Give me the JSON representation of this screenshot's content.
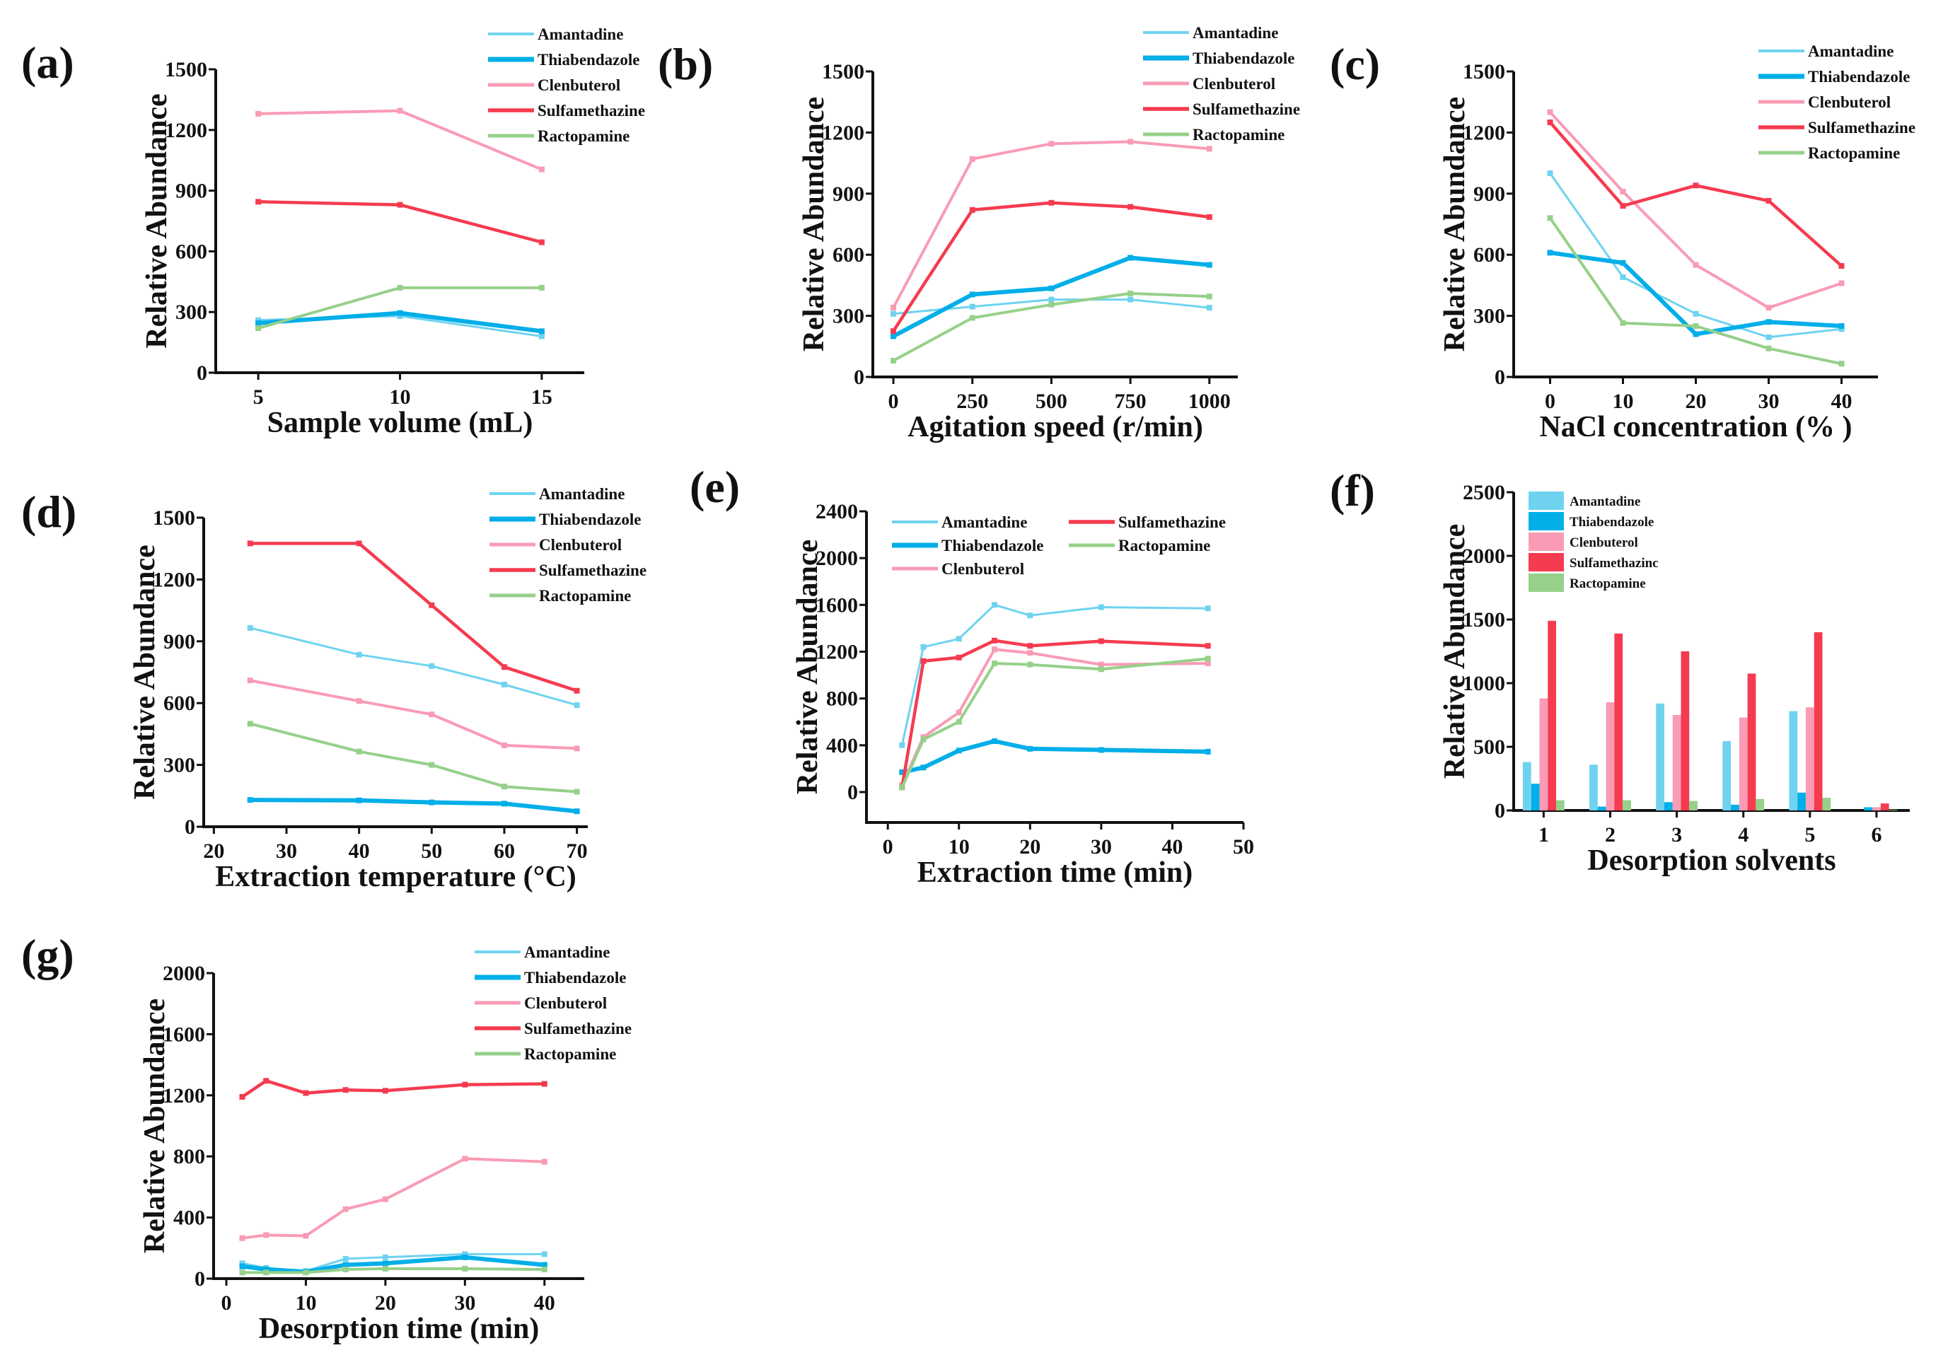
{
  "colors": {
    "Amantadine": "#6fd3f0",
    "Thiabendazole": "#00aee8",
    "Clenbuterol": "#f99bb5",
    "Sulfamethazine": "#f53b4f",
    "Ractopamine": "#96d08a"
  },
  "chart_data": [
    {
      "panel": "(a)",
      "type": "line",
      "xlabel": "Sample volume (mL)",
      "ylabel": "Relative Abundance",
      "xlim": [
        3.5,
        16.5
      ],
      "ylim": [
        0,
        1500
      ],
      "xticks": [
        5,
        10,
        15
      ],
      "yticks": [
        0,
        300,
        600,
        900,
        1200,
        1500
      ],
      "legend": "top-right",
      "x": [
        5,
        10,
        15
      ],
      "series": [
        {
          "name": "Amantadine",
          "values": [
            260,
            280,
            180
          ]
        },
        {
          "name": "Thiabendazole",
          "values": [
            245,
            295,
            205
          ]
        },
        {
          "name": "Clenbuterol",
          "values": [
            1280,
            1295,
            1005
          ]
        },
        {
          "name": "Sulfamethazine",
          "values": [
            845,
            830,
            645
          ]
        },
        {
          "name": "Ractopamine",
          "values": [
            220,
            420,
            420
          ]
        }
      ]
    },
    {
      "panel": "(b)",
      "type": "line",
      "xlabel": "Agitation speed (r/min)",
      "ylabel": "Relative Abundance",
      "xlim": [
        -65,
        1090
      ],
      "ylim": [
        0,
        1500
      ],
      "xticks": [
        0,
        250,
        500,
        750,
        1000
      ],
      "yticks": [
        0,
        300,
        600,
        900,
        1200,
        1500
      ],
      "legend": "top-right",
      "x": [
        0,
        250,
        500,
        750,
        1000
      ],
      "series": [
        {
          "name": "Amantadine",
          "values": [
            310,
            345,
            380,
            380,
            340
          ]
        },
        {
          "name": "Thiabendazole",
          "values": [
            200,
            405,
            435,
            585,
            550
          ]
        },
        {
          "name": "Clenbuterol",
          "values": [
            340,
            1070,
            1145,
            1155,
            1120
          ]
        },
        {
          "name": "Sulfamethazine",
          "values": [
            225,
            820,
            855,
            835,
            785
          ]
        },
        {
          "name": "Ractopamine",
          "values": [
            80,
            290,
            355,
            410,
            395
          ]
        }
      ]
    },
    {
      "panel": "(c)",
      "type": "line",
      "xlabel": "NaCl concentration (% )",
      "ylabel": "Relative Abundance",
      "xlim": [
        -5,
        45
      ],
      "ylim": [
        0,
        1500
      ],
      "xticks": [
        0,
        10,
        20,
        30,
        40
      ],
      "yticks": [
        0,
        300,
        600,
        900,
        1200,
        1500
      ],
      "legend": "top-right",
      "x": [
        0,
        10,
        20,
        30,
        40
      ],
      "series": [
        {
          "name": "Amantadine",
          "values": [
            1000,
            490,
            310,
            195,
            235
          ]
        },
        {
          "name": "Thiabendazole",
          "values": [
            610,
            560,
            210,
            270,
            250
          ]
        },
        {
          "name": "Clenbuterol",
          "values": [
            1300,
            910,
            550,
            340,
            460
          ]
        },
        {
          "name": "Sulfamethazine",
          "values": [
            1250,
            840,
            940,
            865,
            545
          ]
        },
        {
          "name": "Ractopamine",
          "values": [
            780,
            265,
            250,
            140,
            65
          ]
        }
      ]
    },
    {
      "panel": "(d)",
      "type": "line",
      "xlabel": "Extraction temperature (°C)",
      "ylabel": "Relative Abundance",
      "xlim": [
        18.6,
        71.5
      ],
      "ylim": [
        0,
        1500
      ],
      "xticks": [
        20,
        30,
        40,
        50,
        60,
        70
      ],
      "yticks": [
        0,
        300,
        600,
        900,
        1200,
        1500
      ],
      "legend": "top-right",
      "x": [
        25,
        40,
        50,
        60,
        70
      ],
      "series": [
        {
          "name": "Amantadine",
          "values": [
            965,
            835,
            780,
            690,
            590
          ]
        },
        {
          "name": "Thiabendazole",
          "values": [
            130,
            128,
            118,
            112,
            75
          ]
        },
        {
          "name": "Clenbuterol",
          "values": [
            710,
            610,
            545,
            395,
            380
          ]
        },
        {
          "name": "Sulfamethazine",
          "values": [
            1375,
            1375,
            1075,
            775,
            660
          ]
        },
        {
          "name": "Ractopamine",
          "values": [
            500,
            365,
            300,
            195,
            170
          ]
        }
      ]
    },
    {
      "panel": "(e)",
      "type": "line",
      "xlabel": "Extraction time (min)",
      "ylabel": "Relative Abundance",
      "xlim": [
        -3,
        50
      ],
      "ylim": [
        -260,
        2400
      ],
      "xticks": [
        0,
        10,
        20,
        30,
        40,
        50
      ],
      "yticks": [
        0,
        400,
        800,
        1200,
        1600,
        2000,
        2400
      ],
      "legend": "top",
      "x": [
        2,
        5,
        10,
        15,
        20,
        30,
        45
      ],
      "series": [
        {
          "name": "Amantadine",
          "values": [
            400,
            1240,
            1310,
            1600,
            1510,
            1580,
            1570
          ]
        },
        {
          "name": "Thiabendazole",
          "values": [
            170,
            210,
            355,
            435,
            370,
            360,
            345
          ]
        },
        {
          "name": "Clenbuterol",
          "values": [
            60,
            470,
            680,
            1220,
            1190,
            1090,
            1100
          ]
        },
        {
          "name": "Sulfamethazine",
          "values": [
            40,
            1120,
            1150,
            1295,
            1250,
            1290,
            1250
          ]
        },
        {
          "name": "Ractopamine",
          "values": [
            40,
            450,
            600,
            1100,
            1090,
            1050,
            1140
          ]
        }
      ]
    },
    {
      "panel": "(f)",
      "type": "bar",
      "xlabel": "Desorption solvents",
      "ylabel": "Relative Abundance",
      "xlim": [
        0.55,
        6.5
      ],
      "ylim": [
        0,
        2500
      ],
      "xticks": [
        1,
        2,
        3,
        4,
        5,
        6
      ],
      "yticks": [
        0,
        500,
        1000,
        1500,
        2000,
        2500
      ],
      "legend": "top-left",
      "categories": [
        1,
        2,
        3,
        4,
        5,
        6
      ],
      "legend_labels": [
        "Amantadine",
        "Thiabendazole",
        "Clenbuterol",
        "Sulfamethazinc",
        "Ractopamine"
      ],
      "series": [
        {
          "name": "Amantadine",
          "values": [
            380,
            360,
            840,
            545,
            780,
            0
          ]
        },
        {
          "name": "Thiabendazole",
          "values": [
            210,
            30,
            65,
            45,
            140,
            25
          ]
        },
        {
          "name": "Clenbuterol",
          "values": [
            880,
            850,
            750,
            730,
            810,
            25
          ]
        },
        {
          "name": "Sulfamethazine",
          "values": [
            1490,
            1390,
            1250,
            1075,
            1400,
            55
          ]
        },
        {
          "name": "Ractopamine",
          "values": [
            80,
            80,
            75,
            90,
            100,
            5
          ]
        }
      ]
    },
    {
      "panel": "(g)",
      "type": "line",
      "xlabel": "Desorption time (min)",
      "ylabel": "Relative Abundance",
      "xlim": [
        -1.6,
        45
      ],
      "ylim": [
        0,
        2000
      ],
      "xticks": [
        0,
        10,
        20,
        30,
        40
      ],
      "yticks": [
        0,
        400,
        800,
        1200,
        1600,
        2000
      ],
      "legend": "top-right",
      "x": [
        2,
        5,
        10,
        15,
        20,
        30,
        40
      ],
      "series": [
        {
          "name": "Amantadine",
          "values": [
            100,
            70,
            50,
            130,
            140,
            160,
            160
          ]
        },
        {
          "name": "Thiabendazole",
          "values": [
            80,
            60,
            45,
            90,
            100,
            140,
            90
          ]
        },
        {
          "name": "Clenbuterol",
          "values": [
            265,
            285,
            280,
            455,
            520,
            785,
            765
          ]
        },
        {
          "name": "Sulfamethazine",
          "values": [
            1190,
            1295,
            1215,
            1235,
            1230,
            1270,
            1275
          ]
        },
        {
          "name": "Ractopamine",
          "values": [
            40,
            40,
            40,
            60,
            65,
            65,
            60
          ]
        }
      ]
    }
  ]
}
